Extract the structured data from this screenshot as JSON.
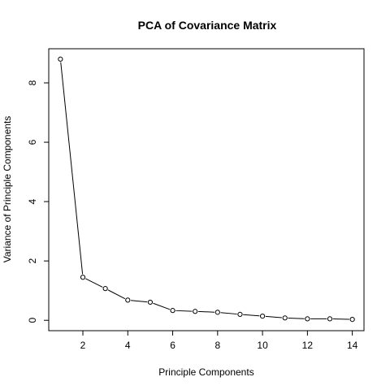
{
  "chart_data": {
    "type": "line",
    "title": "PCA of Covariance Matrix",
    "xlabel": "Principle Components",
    "ylabel": "Variance of Principle Components",
    "x": [
      1,
      2,
      3,
      4,
      5,
      6,
      7,
      8,
      9,
      10,
      11,
      12,
      13,
      14
    ],
    "series": [
      {
        "values": [
          8.8,
          1.45,
          1.07,
          0.68,
          0.61,
          0.33,
          0.3,
          0.27,
          0.2,
          0.14,
          0.08,
          0.05,
          0.05,
          0.03
        ]
      }
    ],
    "xlim": [
      0.48,
      14.52
    ],
    "ylim": [
      -0.35,
      9.15
    ],
    "xticks": [
      2,
      4,
      6,
      8,
      10,
      12,
      14
    ],
    "yticks": [
      0,
      2,
      4,
      6,
      8
    ],
    "markers": "open-circle",
    "grid": false,
    "legend": "none",
    "line_color": "#000000"
  }
}
